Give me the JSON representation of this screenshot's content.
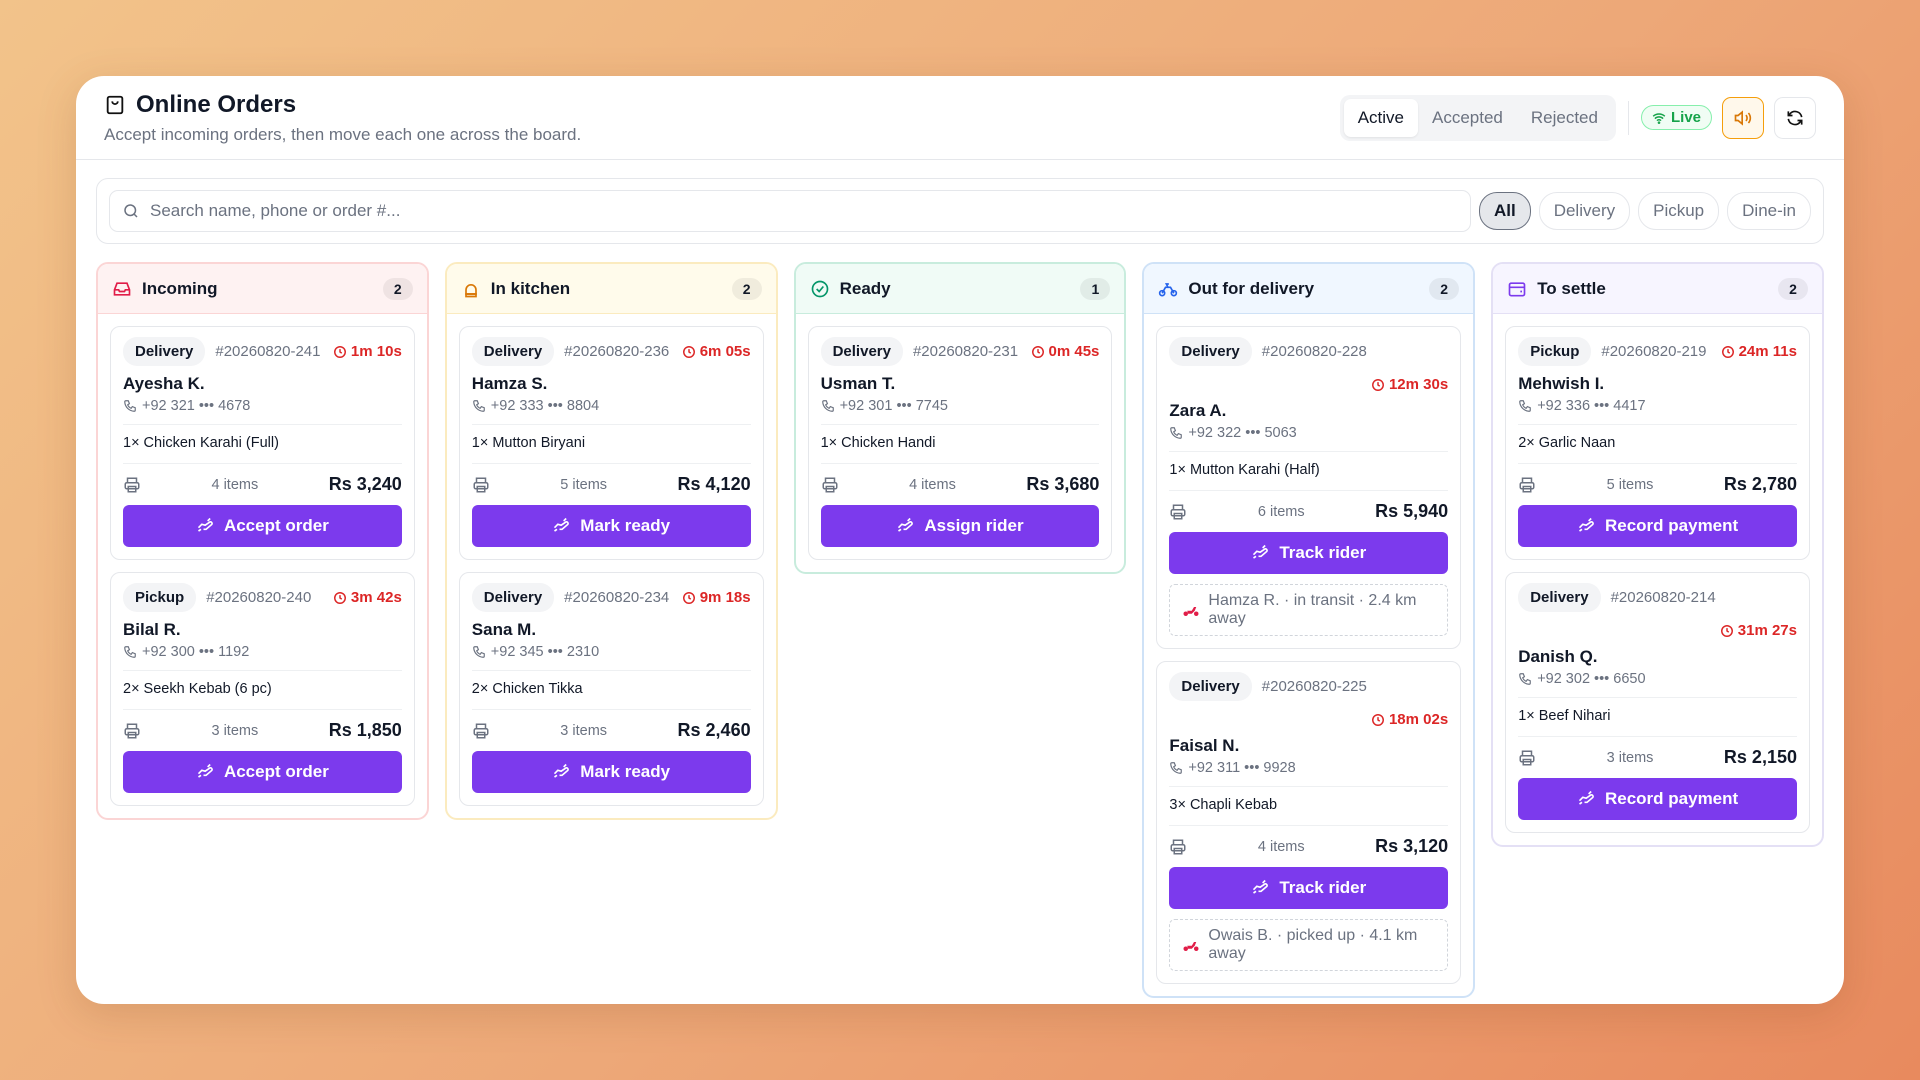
{
  "header": {
    "title": "Online Orders",
    "subtitle": "Accept incoming orders, then move each one across the board."
  },
  "tabs": [
    "Active",
    "Accepted",
    "Rejected"
  ],
  "live": "Live",
  "search": {
    "placeholder": "Search name, phone or order #..."
  },
  "filters": [
    "All",
    "Delivery",
    "Pickup",
    "Dine-in"
  ],
  "columns": [
    {
      "title": "Incoming",
      "count": 2,
      "cards": [
        {
          "type": "Delivery",
          "order": "#20260820-241",
          "timer": "1m 10s",
          "name": "Ayesha K.",
          "phone": "+92 321 ••• 4678",
          "item": "1× Chicken Karahi (Full)",
          "items": "4 items",
          "total": "Rs 3,240",
          "action": "Accept order"
        },
        {
          "type": "Pickup",
          "order": "#20260820-240",
          "timer": "3m 42s",
          "name": "Bilal R.",
          "phone": "+92 300 ••• 1192",
          "item": "2× Seekh Kebab (6 pc)",
          "items": "3 items",
          "total": "Rs 1,850",
          "action": "Accept order"
        }
      ]
    },
    {
      "title": "In kitchen",
      "count": 2,
      "cards": [
        {
          "type": "Delivery",
          "order": "#20260820-236",
          "timer": "6m 05s",
          "name": "Hamza S.",
          "phone": "+92 333 ••• 8804",
          "item": "1× Mutton Biryani",
          "items": "5 items",
          "total": "Rs 4,120",
          "action": "Mark ready"
        },
        {
          "type": "Delivery",
          "order": "#20260820-234",
          "timer": "9m 18s",
          "name": "Sana M.",
          "phone": "+92 345 ••• 2310",
          "item": "2× Chicken Tikka",
          "items": "3 items",
          "total": "Rs 2,460",
          "action": "Mark ready"
        }
      ]
    },
    {
      "title": "Ready",
      "count": 1,
      "cards": [
        {
          "type": "Delivery",
          "order": "#20260820-231",
          "timer": "0m 45s",
          "name": "Usman T.",
          "phone": "+92 301 ••• 7745",
          "item": "1× Chicken Handi",
          "items": "4 items",
          "total": "Rs 3,680",
          "action": "Assign rider"
        }
      ]
    },
    {
      "title": "Out for delivery",
      "count": 2,
      "cards": [
        {
          "type": "Delivery",
          "order": "#20260820-228",
          "timer": "12m 30s",
          "name": "Zara A.",
          "phone": "+92 322 ••• 5063",
          "item": "1× Mutton Karahi (Half)",
          "items": "6 items",
          "total": "Rs 5,940",
          "action": "Track rider",
          "rider": "Hamza R. · in transit · 2.4 km away"
        },
        {
          "type": "Delivery",
          "order": "#20260820-225",
          "timer": "18m 02s",
          "name": "Faisal N.",
          "phone": "+92 311 ••• 9928",
          "item": "3× Chapli Kebab",
          "items": "4 items",
          "total": "Rs 3,120",
          "action": "Track rider",
          "rider": "Owais B. · picked up · 4.1 km away"
        }
      ]
    },
    {
      "title": "To settle",
      "count": 2,
      "cards": [
        {
          "type": "Pickup",
          "order": "#20260820-219",
          "timer": "24m 11s",
          "name": "Mehwish I.",
          "phone": "+92 336 ••• 4417",
          "item": "2× Garlic Naan",
          "items": "5 items",
          "total": "Rs 2,780",
          "action": "Record payment"
        },
        {
          "type": "Delivery",
          "order": "#20260820-214",
          "timer": "31m 27s",
          "name": "Danish Q.",
          "phone": "+92 302 ••• 6650",
          "item": "1× Beef Nihari",
          "items": "3 items",
          "total": "Rs 2,150",
          "action": "Record payment"
        }
      ]
    }
  ]
}
